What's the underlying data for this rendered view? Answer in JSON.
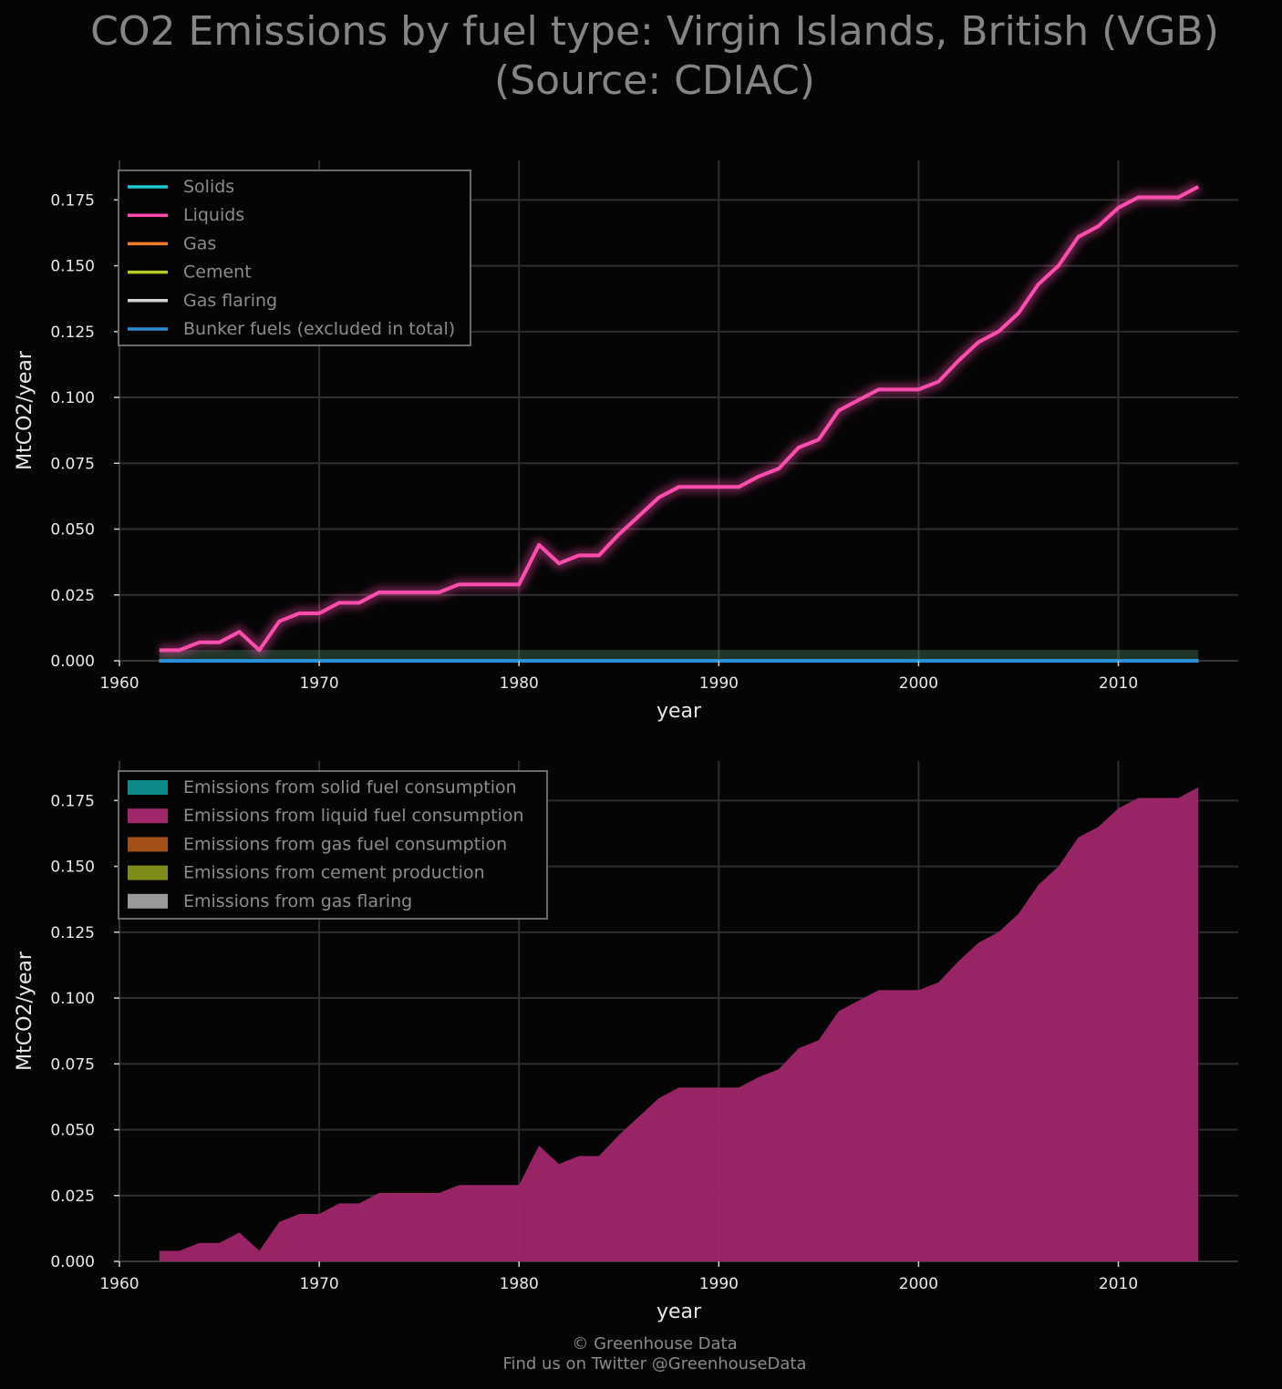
{
  "title": {
    "line1": "CO2 Emissions by fuel type: Virgin Islands, British (VGB)",
    "line2": "(Source: CDIAC)"
  },
  "footer": {
    "line1": "© Greenhouse Data",
    "line2": "Find us on Twitter @GreenhouseData"
  },
  "colors": {
    "background": "#050505",
    "grid": "#2e2e2e",
    "solids": "#1ec8d2",
    "liquids": "#ff4dad",
    "gas": "#f07a2a",
    "cement": "#b7cc22",
    "gas_flaring": "#d2d2d2",
    "bunker": "#2a8fd4",
    "area_solid": "#0f8a8a",
    "area_liquid": "#a1266a",
    "area_gas": "#a24f18",
    "area_cement": "#7f8c1a",
    "area_flaring": "#9a9a9a"
  },
  "chart_data": [
    {
      "type": "line",
      "xlabel": "year",
      "ylabel": "MtCO2/year",
      "xlim": [
        1960,
        2016
      ],
      "ylim": [
        0,
        0.19
      ],
      "xticks": [
        "1960",
        "1970",
        "1980",
        "1990",
        "2000",
        "2010"
      ],
      "yticks": [
        "0.000",
        "0.025",
        "0.050",
        "0.075",
        "0.100",
        "0.125",
        "0.150",
        "0.175"
      ],
      "grid": true,
      "legend_position": "top-left",
      "x": [
        1962,
        1963,
        1964,
        1965,
        1966,
        1967,
        1968,
        1969,
        1970,
        1971,
        1972,
        1973,
        1974,
        1975,
        1976,
        1977,
        1978,
        1979,
        1980,
        1981,
        1982,
        1983,
        1984,
        1985,
        1986,
        1987,
        1988,
        1989,
        1990,
        1991,
        1992,
        1993,
        1994,
        1995,
        1996,
        1997,
        1998,
        1999,
        2000,
        2001,
        2002,
        2003,
        2004,
        2005,
        2006,
        2007,
        2008,
        2009,
        2010,
        2011,
        2012,
        2013,
        2014
      ],
      "series": [
        {
          "name": "Solids",
          "values": [
            0,
            0,
            0,
            0,
            0,
            0,
            0,
            0,
            0,
            0,
            0,
            0,
            0,
            0,
            0,
            0,
            0,
            0,
            0,
            0,
            0,
            0,
            0,
            0,
            0,
            0,
            0,
            0,
            0,
            0,
            0,
            0,
            0,
            0,
            0,
            0,
            0,
            0,
            0,
            0,
            0,
            0,
            0,
            0,
            0,
            0,
            0,
            0,
            0,
            0,
            0,
            0,
            0
          ]
        },
        {
          "name": "Liquids",
          "values": [
            0.004,
            0.004,
            0.007,
            0.007,
            0.011,
            0.004,
            0.015,
            0.018,
            0.018,
            0.022,
            0.022,
            0.026,
            0.026,
            0.026,
            0.026,
            0.029,
            0.029,
            0.029,
            0.029,
            0.044,
            0.037,
            0.04,
            0.04,
            0.048,
            0.055,
            0.062,
            0.066,
            0.066,
            0.066,
            0.066,
            0.07,
            0.073,
            0.081,
            0.084,
            0.095,
            0.099,
            0.103,
            0.103,
            0.103,
            0.106,
            0.114,
            0.121,
            0.125,
            0.132,
            0.143,
            0.15,
            0.161,
            0.165,
            0.172,
            0.176,
            0.176,
            0.176,
            0.18
          ]
        },
        {
          "name": "Gas",
          "values": [
            0,
            0,
            0,
            0,
            0,
            0,
            0,
            0,
            0,
            0,
            0,
            0,
            0,
            0,
            0,
            0,
            0,
            0,
            0,
            0,
            0,
            0,
            0,
            0,
            0,
            0,
            0,
            0,
            0,
            0,
            0,
            0,
            0,
            0,
            0,
            0,
            0,
            0,
            0,
            0,
            0,
            0,
            0,
            0,
            0,
            0,
            0,
            0,
            0,
            0,
            0,
            0,
            0
          ]
        },
        {
          "name": "Cement",
          "values": [
            0,
            0,
            0,
            0,
            0,
            0,
            0,
            0,
            0,
            0,
            0,
            0,
            0,
            0,
            0,
            0,
            0,
            0,
            0,
            0,
            0,
            0,
            0,
            0,
            0,
            0,
            0,
            0,
            0,
            0,
            0,
            0,
            0,
            0,
            0,
            0,
            0,
            0,
            0,
            0,
            0,
            0,
            0,
            0,
            0,
            0,
            0,
            0,
            0,
            0,
            0,
            0,
            0
          ]
        },
        {
          "name": "Gas flaring",
          "values": [
            0,
            0,
            0,
            0,
            0,
            0,
            0,
            0,
            0,
            0,
            0,
            0,
            0,
            0,
            0,
            0,
            0,
            0,
            0,
            0,
            0,
            0,
            0,
            0,
            0,
            0,
            0,
            0,
            0,
            0,
            0,
            0,
            0,
            0,
            0,
            0,
            0,
            0,
            0,
            0,
            0,
            0,
            0,
            0,
            0,
            0,
            0,
            0,
            0,
            0,
            0,
            0,
            0
          ]
        },
        {
          "name": "Bunker fuels (excluded in total)",
          "values": [
            0,
            0,
            0,
            0,
            0,
            0,
            0,
            0,
            0,
            0,
            0,
            0,
            0,
            0,
            0,
            0,
            0,
            0,
            0,
            0,
            0,
            0,
            0,
            0,
            0,
            0,
            0,
            0,
            0,
            0,
            0,
            0,
            0,
            0,
            0,
            0,
            0,
            0,
            0,
            0,
            0,
            0,
            0,
            0,
            0,
            0,
            0,
            0,
            0,
            0,
            0,
            0,
            0
          ]
        }
      ]
    },
    {
      "type": "area",
      "stacked": true,
      "xlabel": "year",
      "ylabel": "MtCO2/year",
      "xlim": [
        1960,
        2016
      ],
      "ylim": [
        0,
        0.19
      ],
      "xticks": [
        "1960",
        "1970",
        "1980",
        "1990",
        "2000",
        "2010"
      ],
      "yticks": [
        "0.000",
        "0.025",
        "0.050",
        "0.075",
        "0.100",
        "0.125",
        "0.150",
        "0.175"
      ],
      "grid": true,
      "legend_position": "top-left",
      "x": [
        1962,
        1963,
        1964,
        1965,
        1966,
        1967,
        1968,
        1969,
        1970,
        1971,
        1972,
        1973,
        1974,
        1975,
        1976,
        1977,
        1978,
        1979,
        1980,
        1981,
        1982,
        1983,
        1984,
        1985,
        1986,
        1987,
        1988,
        1989,
        1990,
        1991,
        1992,
        1993,
        1994,
        1995,
        1996,
        1997,
        1998,
        1999,
        2000,
        2001,
        2002,
        2003,
        2004,
        2005,
        2006,
        2007,
        2008,
        2009,
        2010,
        2011,
        2012,
        2013,
        2014
      ],
      "series": [
        {
          "name": "Emissions from solid fuel consumption",
          "values": [
            0,
            0,
            0,
            0,
            0,
            0,
            0,
            0,
            0,
            0,
            0,
            0,
            0,
            0,
            0,
            0,
            0,
            0,
            0,
            0,
            0,
            0,
            0,
            0,
            0,
            0,
            0,
            0,
            0,
            0,
            0,
            0,
            0,
            0,
            0,
            0,
            0,
            0,
            0,
            0,
            0,
            0,
            0,
            0,
            0,
            0,
            0,
            0,
            0,
            0,
            0,
            0,
            0
          ]
        },
        {
          "name": "Emissions from liquid fuel consumption",
          "values": [
            0.004,
            0.004,
            0.007,
            0.007,
            0.011,
            0.004,
            0.015,
            0.018,
            0.018,
            0.022,
            0.022,
            0.026,
            0.026,
            0.026,
            0.026,
            0.029,
            0.029,
            0.029,
            0.029,
            0.044,
            0.037,
            0.04,
            0.04,
            0.048,
            0.055,
            0.062,
            0.066,
            0.066,
            0.066,
            0.066,
            0.07,
            0.073,
            0.081,
            0.084,
            0.095,
            0.099,
            0.103,
            0.103,
            0.103,
            0.106,
            0.114,
            0.121,
            0.125,
            0.132,
            0.143,
            0.15,
            0.161,
            0.165,
            0.172,
            0.176,
            0.176,
            0.176,
            0.18
          ]
        },
        {
          "name": "Emissions from gas fuel consumption",
          "values": [
            0,
            0,
            0,
            0,
            0,
            0,
            0,
            0,
            0,
            0,
            0,
            0,
            0,
            0,
            0,
            0,
            0,
            0,
            0,
            0,
            0,
            0,
            0,
            0,
            0,
            0,
            0,
            0,
            0,
            0,
            0,
            0,
            0,
            0,
            0,
            0,
            0,
            0,
            0,
            0,
            0,
            0,
            0,
            0,
            0,
            0,
            0,
            0,
            0,
            0,
            0,
            0,
            0
          ]
        },
        {
          "name": "Emissions from cement production",
          "values": [
            0,
            0,
            0,
            0,
            0,
            0,
            0,
            0,
            0,
            0,
            0,
            0,
            0,
            0,
            0,
            0,
            0,
            0,
            0,
            0,
            0,
            0,
            0,
            0,
            0,
            0,
            0,
            0,
            0,
            0,
            0,
            0,
            0,
            0,
            0,
            0,
            0,
            0,
            0,
            0,
            0,
            0,
            0,
            0,
            0,
            0,
            0,
            0,
            0,
            0,
            0,
            0,
            0
          ]
        },
        {
          "name": "Emissions from gas flaring",
          "values": [
            0,
            0,
            0,
            0,
            0,
            0,
            0,
            0,
            0,
            0,
            0,
            0,
            0,
            0,
            0,
            0,
            0,
            0,
            0,
            0,
            0,
            0,
            0,
            0,
            0,
            0,
            0,
            0,
            0,
            0,
            0,
            0,
            0,
            0,
            0,
            0,
            0,
            0,
            0,
            0,
            0,
            0,
            0,
            0,
            0,
            0,
            0,
            0,
            0,
            0,
            0,
            0,
            0
          ]
        }
      ]
    }
  ]
}
